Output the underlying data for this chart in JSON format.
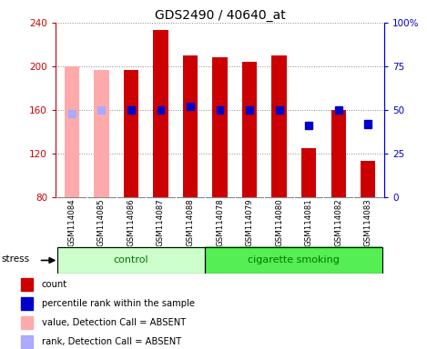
{
  "title": "GDS2490 / 40640_at",
  "samples": [
    "GSM114084",
    "GSM114085",
    "GSM114086",
    "GSM114087",
    "GSM114088",
    "GSM114078",
    "GSM114079",
    "GSM114080",
    "GSM114081",
    "GSM114082",
    "GSM114083"
  ],
  "groups": [
    "control",
    "control",
    "control",
    "control",
    "control",
    "cigarette smoking",
    "cigarette smoking",
    "cigarette smoking",
    "cigarette smoking",
    "cigarette smoking",
    "cigarette smoking"
  ],
  "values": [
    200,
    197,
    197,
    233,
    210,
    208,
    204,
    210,
    125,
    160,
    113
  ],
  "ranks": [
    48,
    50,
    50,
    50,
    52,
    50,
    50,
    50,
    41,
    50,
    42
  ],
  "detection_call": [
    "A",
    "A",
    "P",
    "P",
    "P",
    "P",
    "P",
    "P",
    "P",
    "P",
    "P"
  ],
  "ylim_left": [
    80,
    240
  ],
  "ylim_right": [
    0,
    100
  ],
  "yticks_left": [
    80,
    120,
    160,
    200,
    240
  ],
  "yticks_right": [
    0,
    25,
    50,
    75,
    100
  ],
  "yticklabels_right": [
    "0",
    "25",
    "50",
    "75",
    "100%"
  ],
  "bar_width": 0.5,
  "bar_color_present": "#cc0000",
  "bar_color_absent": "#ffaaaa",
  "rank_color_present": "#0000cc",
  "rank_color_absent": "#aaaaff",
  "group_color_control": "#ccffcc",
  "group_color_smoking": "#55ee55",
  "group_label_color": "#007700",
  "grid_color": "#888888",
  "left_axis_color": "#cc0000",
  "right_axis_color": "#0000cc",
  "xtick_bg_color": "#cccccc",
  "group_box_edge": "#000000"
}
